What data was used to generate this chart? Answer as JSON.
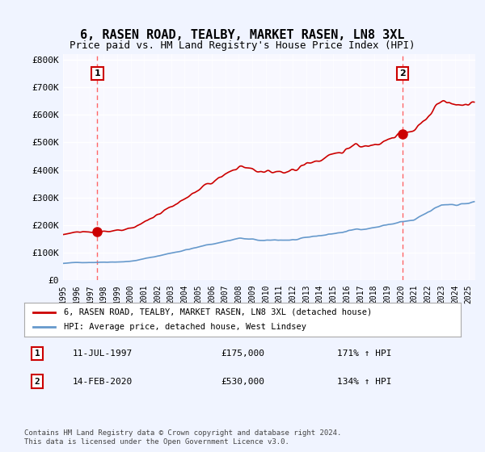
{
  "title": "6, RASEN ROAD, TEALBY, MARKET RASEN, LN8 3XL",
  "subtitle": "Price paid vs. HM Land Registry's House Price Index (HPI)",
  "ylabel_ticks": [
    "£0",
    "£100K",
    "£200K",
    "£300K",
    "£400K",
    "£500K",
    "£600K",
    "£700K",
    "£800K"
  ],
  "ytick_values": [
    0,
    100000,
    200000,
    300000,
    400000,
    500000,
    600000,
    700000,
    800000
  ],
  "ylim": [
    0,
    820000
  ],
  "xlim_start": 1995.0,
  "xlim_end": 2025.5,
  "sale1_x": 1997.53,
  "sale1_y": 175000,
  "sale1_label": "1",
  "sale2_x": 2020.12,
  "sale2_y": 530000,
  "sale2_label": "2",
  "hpi_color": "#6699cc",
  "price_color": "#cc0000",
  "dashed_color": "#ff6666",
  "background_color": "#f0f4ff",
  "plot_bg_color": "#f8f8ff",
  "grid_color": "#ffffff",
  "legend_label_price": "6, RASEN ROAD, TEALBY, MARKET RASEN, LN8 3XL (detached house)",
  "legend_label_hpi": "HPI: Average price, detached house, West Lindsey",
  "annotation1_date": "11-JUL-1997",
  "annotation1_price": "£175,000",
  "annotation1_hpi": "171% ↑ HPI",
  "annotation2_date": "14-FEB-2020",
  "annotation2_price": "£530,000",
  "annotation2_hpi": "134% ↑ HPI",
  "footnote": "Contains HM Land Registry data © Crown copyright and database right 2024.\nThis data is licensed under the Open Government Licence v3.0.",
  "xtick_years": [
    1995,
    1996,
    1997,
    1998,
    1999,
    2000,
    2001,
    2002,
    2003,
    2004,
    2005,
    2006,
    2007,
    2008,
    2009,
    2010,
    2011,
    2012,
    2013,
    2014,
    2015,
    2016,
    2017,
    2018,
    2019,
    2020,
    2021,
    2022,
    2023,
    2024,
    2025
  ]
}
